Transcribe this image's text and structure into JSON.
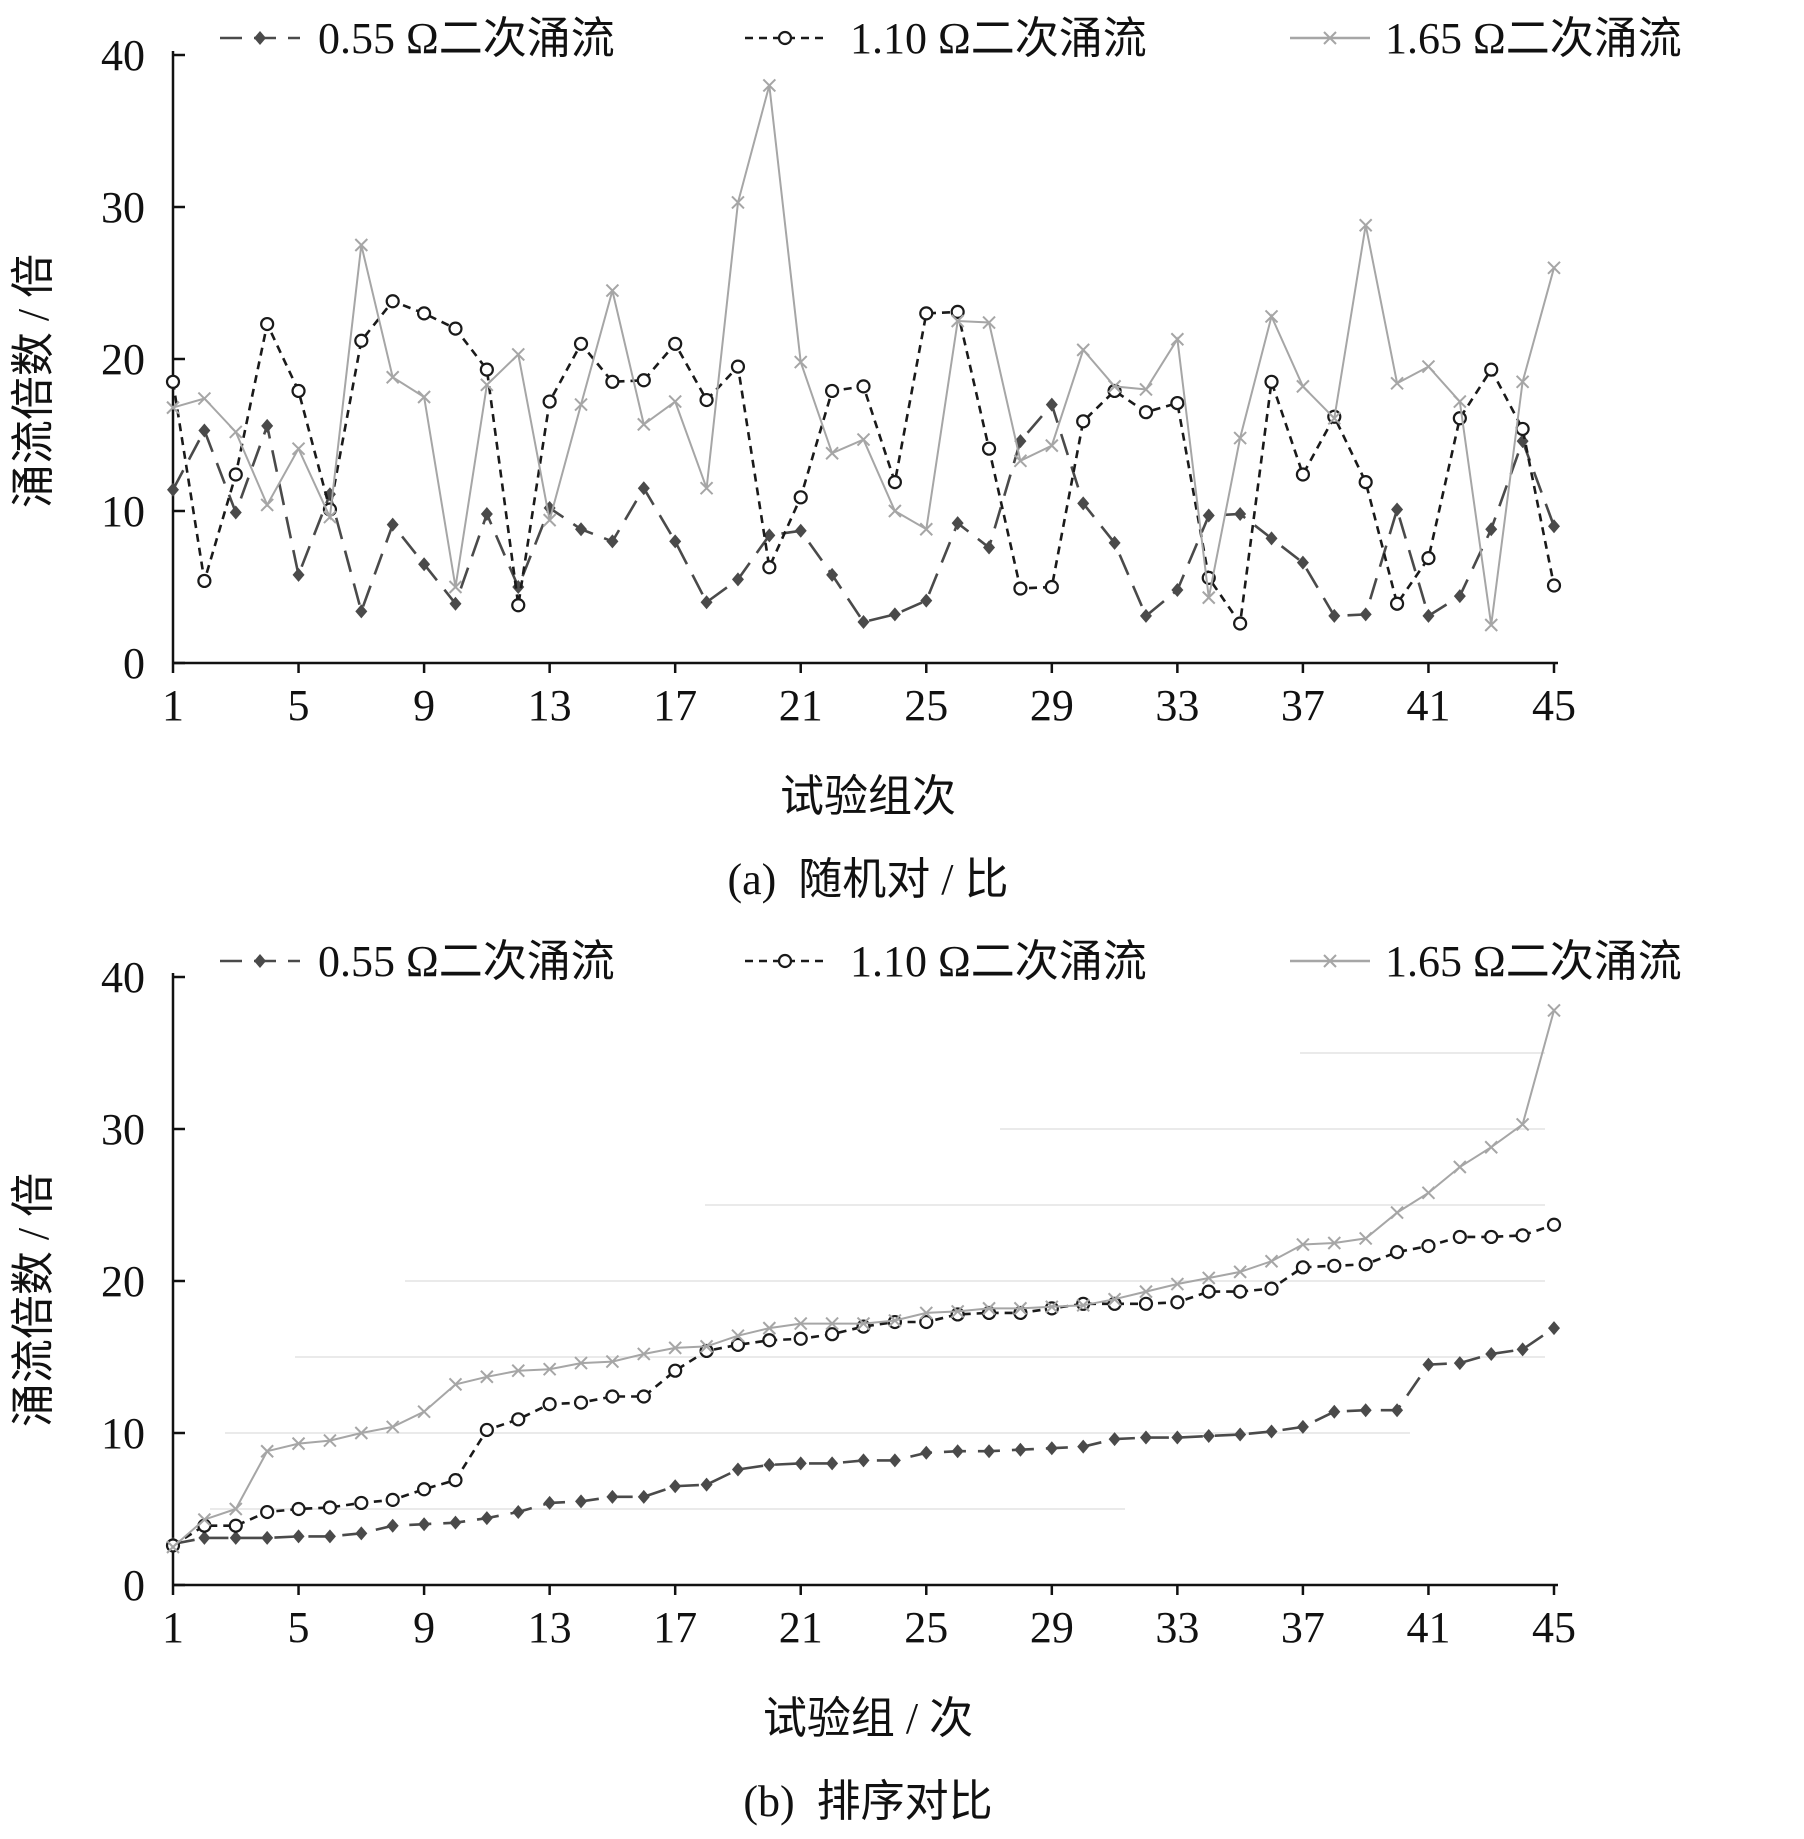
{
  "figure": {
    "x_ticks": [
      "1",
      "5",
      "9",
      "13",
      "17",
      "21",
      "25",
      "29",
      "33",
      "37",
      "41",
      "45"
    ],
    "y_ticks": [
      "0",
      "10",
      "20",
      "30",
      "40"
    ]
  },
  "colors": {
    "series_055": "#4a4a4a",
    "series_110": "#1a1a1a",
    "series_165": "#a6a6a6",
    "axis": "#111111",
    "faint_grid": "#e4e4e4"
  },
  "chart_data": [
    {
      "id": "a",
      "type": "line",
      "caption": "(a)  随机对 / 比",
      "xlabel": "试验组次",
      "ylabel": "涌流倍数 / 倍",
      "xlim": [
        1,
        45
      ],
      "ylim": [
        0,
        40
      ],
      "grid": false,
      "legend_position": "top",
      "x": [
        1,
        2,
        3,
        4,
        5,
        6,
        7,
        8,
        9,
        10,
        11,
        12,
        13,
        14,
        15,
        16,
        17,
        18,
        19,
        20,
        21,
        22,
        23,
        24,
        25,
        26,
        27,
        28,
        29,
        30,
        31,
        32,
        33,
        34,
        35,
        36,
        37,
        38,
        39,
        40,
        41,
        42,
        43,
        44,
        45
      ],
      "series": [
        {
          "name": "0.55 Ω二次涌流",
          "marker": "diamond",
          "dash": "dash",
          "values": [
            11.4,
            15.3,
            9.9,
            15.6,
            5.8,
            11.1,
            3.4,
            9.1,
            6.5,
            3.9,
            9.8,
            5.0,
            10.2,
            8.8,
            8.0,
            11.5,
            8.0,
            4.0,
            5.5,
            8.4,
            8.7,
            5.8,
            2.7,
            3.2,
            4.1,
            9.2,
            7.6,
            14.6,
            17.0,
            10.5,
            7.9,
            3.1,
            4.8,
            9.7,
            9.8,
            8.2,
            6.6,
            3.1,
            3.2,
            10.1,
            3.1,
            4.4,
            8.8,
            14.6,
            9.0
          ]
        },
        {
          "name": "1.10 Ω二次涌流",
          "marker": "circle",
          "dash": "dot",
          "values": [
            18.5,
            5.4,
            12.4,
            22.3,
            17.9,
            10.1,
            21.2,
            23.8,
            23.0,
            22.0,
            19.3,
            3.8,
            17.2,
            21.0,
            18.5,
            18.6,
            21.0,
            17.3,
            19.5,
            6.3,
            10.9,
            17.9,
            18.2,
            11.9,
            23.0,
            23.1,
            14.1,
            4.9,
            5.0,
            15.9,
            17.9,
            16.5,
            17.1,
            5.6,
            2.6,
            18.5,
            12.4,
            16.2,
            11.9,
            3.9,
            6.9,
            16.1,
            19.3,
            15.4,
            5.1
          ]
        },
        {
          "name": "1.65 Ω二次涌流",
          "marker": "x",
          "dash": "solid",
          "values": [
            16.8,
            17.4,
            15.2,
            10.4,
            14.1,
            9.6,
            27.5,
            18.8,
            17.5,
            5.0,
            18.3,
            20.3,
            9.4,
            17.0,
            24.5,
            15.7,
            17.2,
            11.5,
            30.3,
            38.0,
            19.8,
            13.8,
            14.7,
            10.0,
            8.8,
            22.5,
            22.4,
            13.3,
            14.3,
            20.6,
            18.2,
            18.0,
            21.3,
            4.3,
            14.8,
            22.8,
            18.2,
            16.1,
            28.8,
            18.4,
            19.5,
            17.2,
            2.5,
            18.5,
            26.0
          ]
        }
      ]
    },
    {
      "id": "b",
      "type": "line",
      "caption": "(b)  排序对比",
      "xlabel": "试验组 / 次",
      "ylabel": "涌流倍数 / 倍",
      "xlim": [
        1,
        45
      ],
      "ylim": [
        0,
        40
      ],
      "grid": false,
      "legend_position": "top",
      "x": [
        1,
        2,
        3,
        4,
        5,
        6,
        7,
        8,
        9,
        10,
        11,
        12,
        13,
        14,
        15,
        16,
        17,
        18,
        19,
        20,
        21,
        22,
        23,
        24,
        25,
        26,
        27,
        28,
        29,
        30,
        31,
        32,
        33,
        34,
        35,
        36,
        37,
        38,
        39,
        40,
        41,
        42,
        43,
        44,
        45
      ],
      "series": [
        {
          "name": "0.55 Ω二次涌流",
          "marker": "diamond",
          "dash": "dash",
          "values": [
            2.7,
            3.1,
            3.1,
            3.1,
            3.2,
            3.2,
            3.4,
            3.9,
            4.0,
            4.1,
            4.4,
            4.8,
            5.4,
            5.5,
            5.8,
            5.8,
            6.5,
            6.6,
            7.6,
            7.9,
            8.0,
            8.0,
            8.2,
            8.2,
            8.7,
            8.8,
            8.8,
            8.9,
            9.0,
            9.1,
            9.6,
            9.7,
            9.7,
            9.8,
            9.9,
            10.1,
            10.4,
            11.4,
            11.5,
            11.5,
            14.5,
            14.6,
            15.2,
            15.5,
            16.9
          ]
        },
        {
          "name": "1.10 Ω二次涌流",
          "marker": "circle",
          "dash": "dot",
          "values": [
            2.6,
            3.9,
            3.9,
            4.8,
            5.0,
            5.1,
            5.4,
            5.6,
            6.3,
            6.9,
            10.2,
            10.9,
            11.9,
            12.0,
            12.4,
            12.4,
            14.1,
            15.4,
            15.8,
            16.1,
            16.2,
            16.5,
            17.0,
            17.3,
            17.3,
            17.8,
            17.9,
            17.9,
            18.2,
            18.5,
            18.5,
            18.5,
            18.6,
            19.3,
            19.3,
            19.5,
            20.9,
            21.0,
            21.1,
            21.9,
            22.3,
            22.9,
            22.9,
            23.0,
            23.7
          ]
        },
        {
          "name": "1.65 Ω二次涌流",
          "marker": "x",
          "dash": "solid",
          "values": [
            2.5,
            4.3,
            5.0,
            8.8,
            9.3,
            9.5,
            10.0,
            10.4,
            11.4,
            13.2,
            13.7,
            14.1,
            14.2,
            14.6,
            14.7,
            15.2,
            15.6,
            15.7,
            16.4,
            16.9,
            17.2,
            17.2,
            17.2,
            17.4,
            17.9,
            18.0,
            18.2,
            18.2,
            18.3,
            18.4,
            18.8,
            19.3,
            19.8,
            20.2,
            20.6,
            21.3,
            22.4,
            22.5,
            22.8,
            24.5,
            25.8,
            27.5,
            28.8,
            30.3,
            37.8
          ]
        }
      ]
    }
  ]
}
